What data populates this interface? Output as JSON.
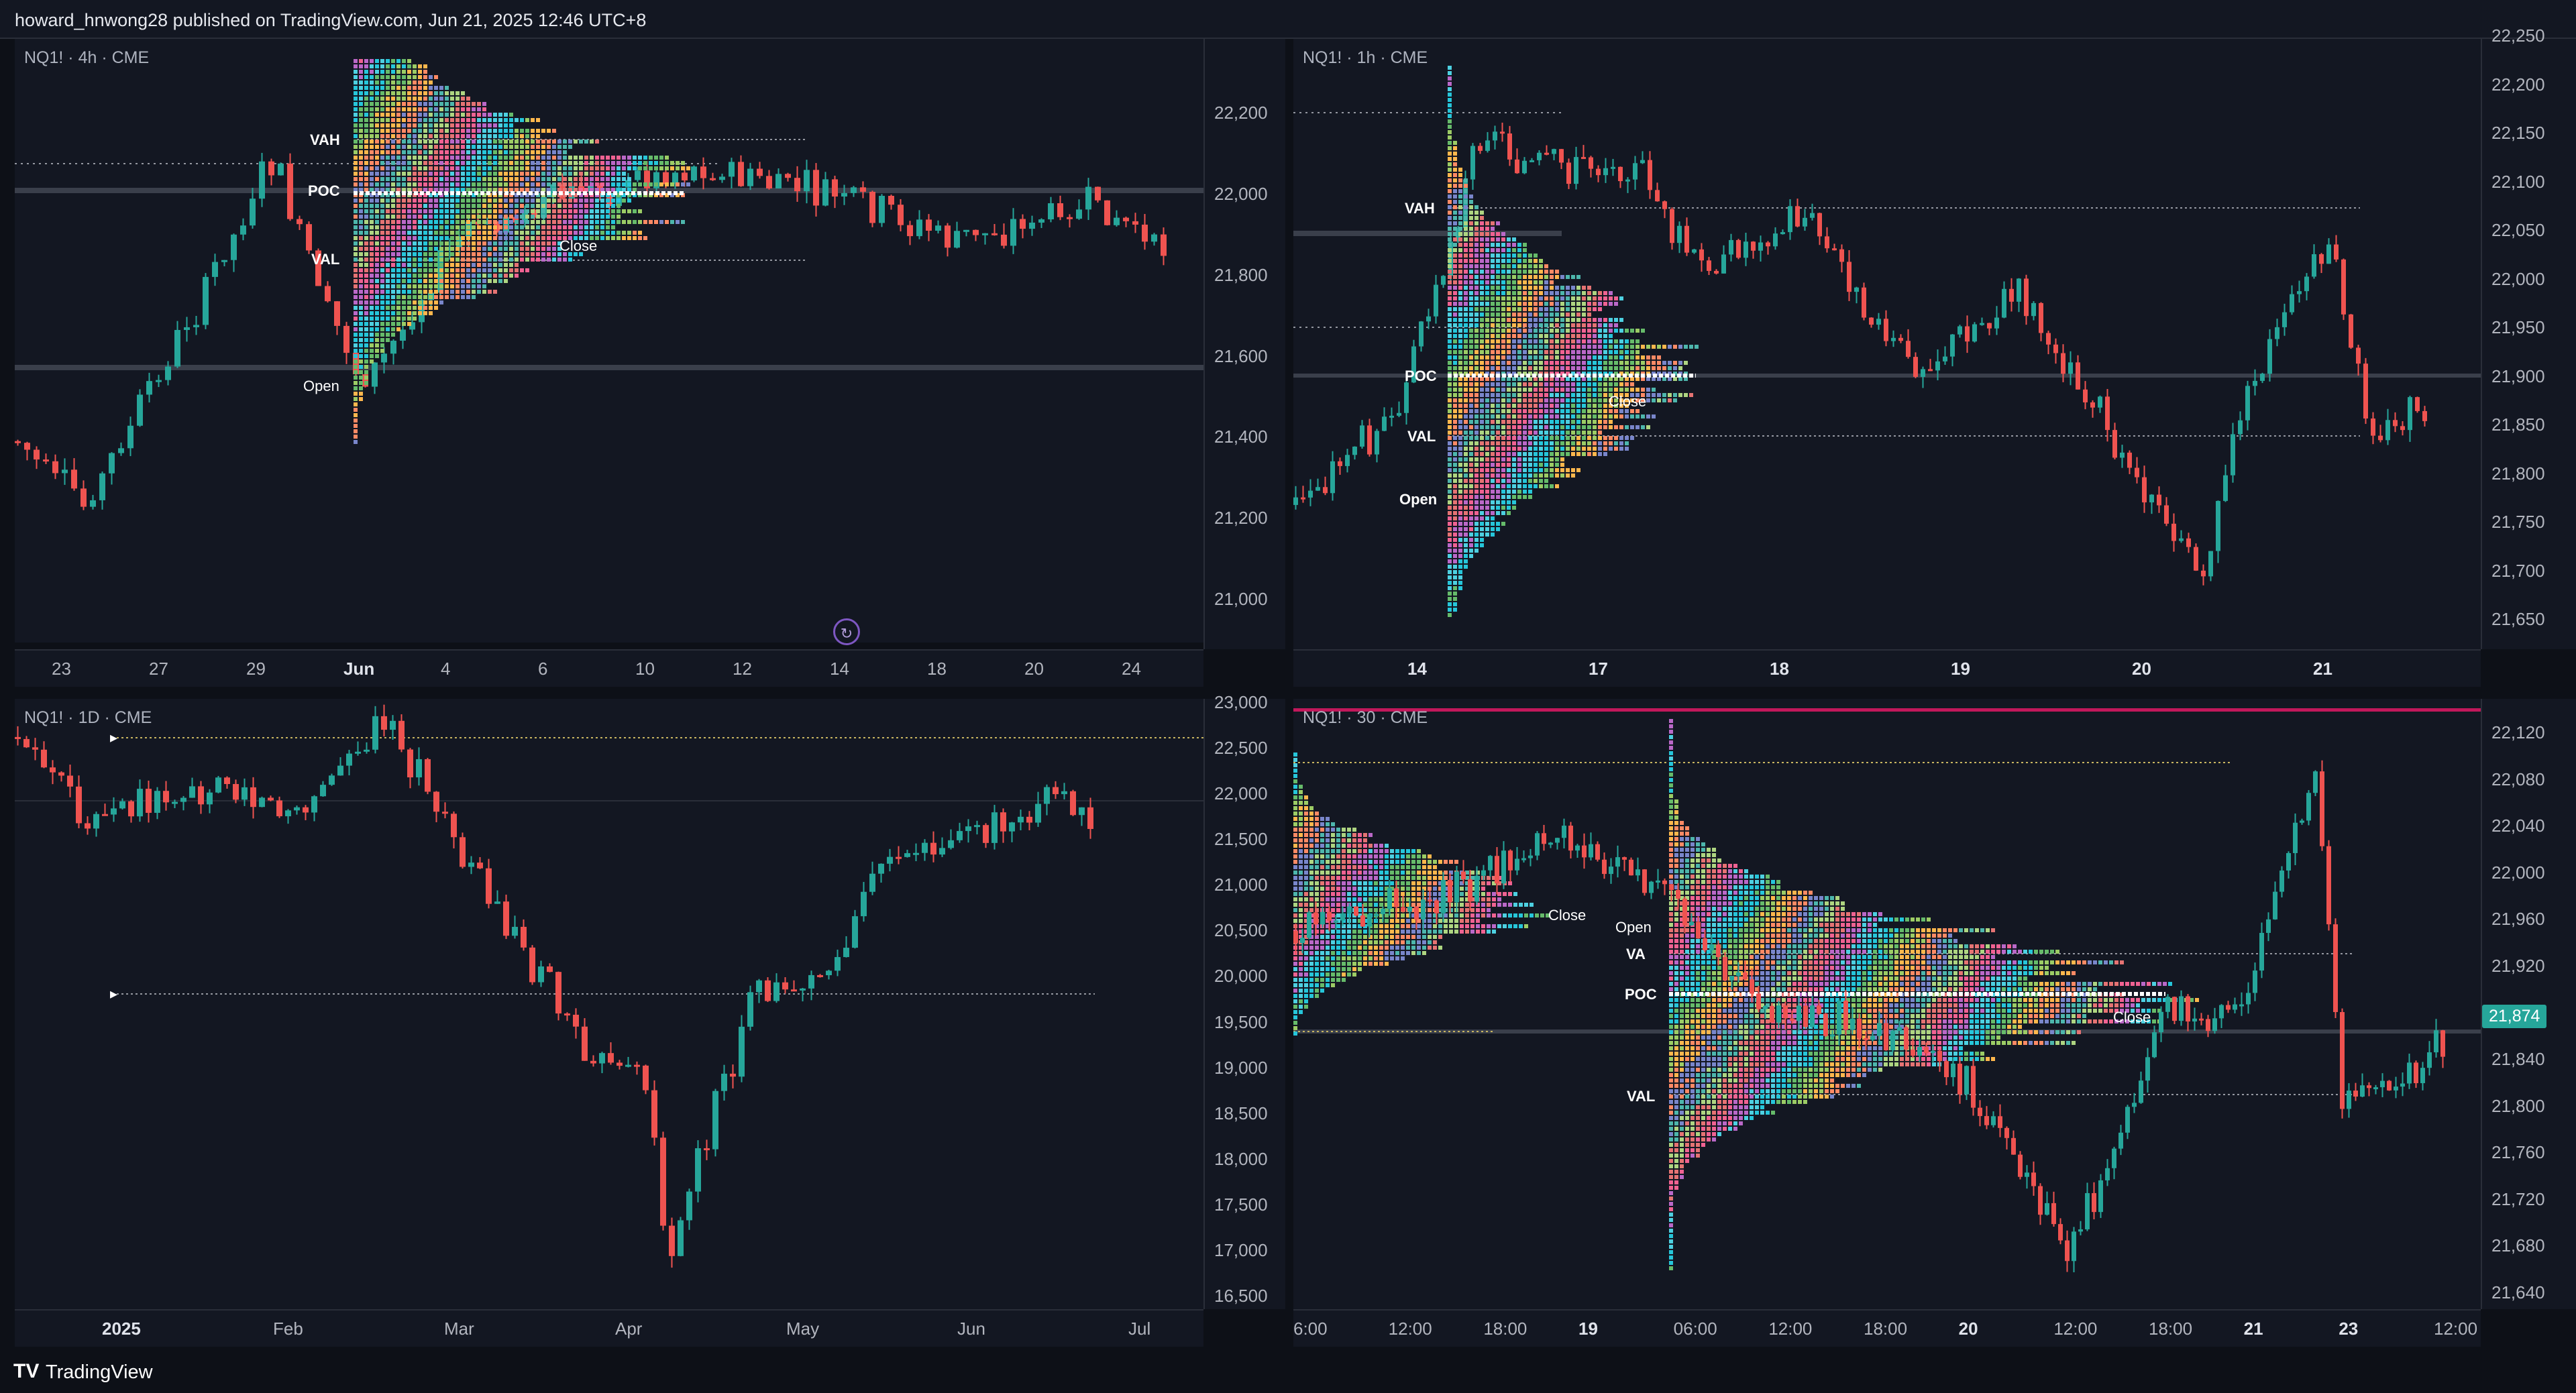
{
  "header": {
    "published_by": "howard_hnwong28 published on TradingView.com, Jun 21, 2025 12:46 UTC+8"
  },
  "footer": {
    "brand": "TradingView",
    "logo": "TV"
  },
  "colors": {
    "up": "#26a69a",
    "down": "#ef5350",
    "bg": "#131722",
    "grid": "#1e222d",
    "axis_text": "#b2b5be",
    "badge": "#26a69a"
  },
  "panels": [
    {
      "id": "p1",
      "label": "NQ1! · 4h · CME",
      "y_ticks": [
        "22,200",
        "22,000",
        "21,800",
        "21,600",
        "21,400",
        "21,200",
        "21,000"
      ],
      "x_ticks": [
        "23",
        "27",
        "29",
        "Jun",
        "4",
        "6",
        "10",
        "12",
        "14",
        "18",
        "20",
        "24"
      ],
      "x_bold": [
        "Jun"
      ],
      "profile_labels": {
        "vah": "VAH",
        "poc": "POC",
        "val": "VAL",
        "open": "Open",
        "close": "Close"
      },
      "replay_icon": "replay-icon"
    },
    {
      "id": "p2",
      "label": "NQ1! · 1h · CME",
      "y_ticks": [
        "22,250",
        "22,200",
        "22,150",
        "22,100",
        "22,050",
        "22,000",
        "21,950",
        "21,900",
        "21,850",
        "21,800",
        "21,750",
        "21,700",
        "21,650"
      ],
      "x_ticks": [
        "14",
        "17",
        "18",
        "19",
        "20",
        "21"
      ],
      "x_bold": [
        "14",
        "17",
        "18",
        "19",
        "20",
        "21"
      ],
      "profile_labels": {
        "vah": "VAH",
        "poc": "POC",
        "val": "VAL",
        "open": "Open",
        "close": "Close"
      }
    },
    {
      "id": "p3",
      "label": "NQ1! · 1D · CME",
      "y_ticks": [
        "23,000",
        "22,500",
        "22,000",
        "21,500",
        "21,000",
        "20,500",
        "20,000",
        "19,500",
        "19,000",
        "18,500",
        "18,000",
        "17,500",
        "17,000",
        "16,500"
      ],
      "x_ticks": [
        "2025",
        "Feb",
        "Mar",
        "Apr",
        "May",
        "Jun",
        "Jul"
      ],
      "x_bold": [
        "2025"
      ]
    },
    {
      "id": "p4",
      "label": "NQ1! · 30 · CME",
      "y_ticks": [
        "22,120",
        "22,080",
        "22,040",
        "22,000",
        "21,960",
        "21,920",
        "21,880",
        "21,840",
        "21,800",
        "21,760",
        "21,720",
        "21,680",
        "21,640"
      ],
      "x_ticks": [
        "6:00",
        "12:00",
        "18:00",
        "19",
        "06:00",
        "12:00",
        "18:00",
        "20",
        "12:00",
        "18:00",
        "21",
        "23",
        "12:00"
      ],
      "x_bold": [
        "19",
        "20",
        "21",
        "23"
      ],
      "profile_labels": {
        "vah": "VA",
        "poc": "POC",
        "val": "VAL",
        "open": "Open",
        "close": "Close"
      },
      "last_price": "21,874"
    }
  ]
}
